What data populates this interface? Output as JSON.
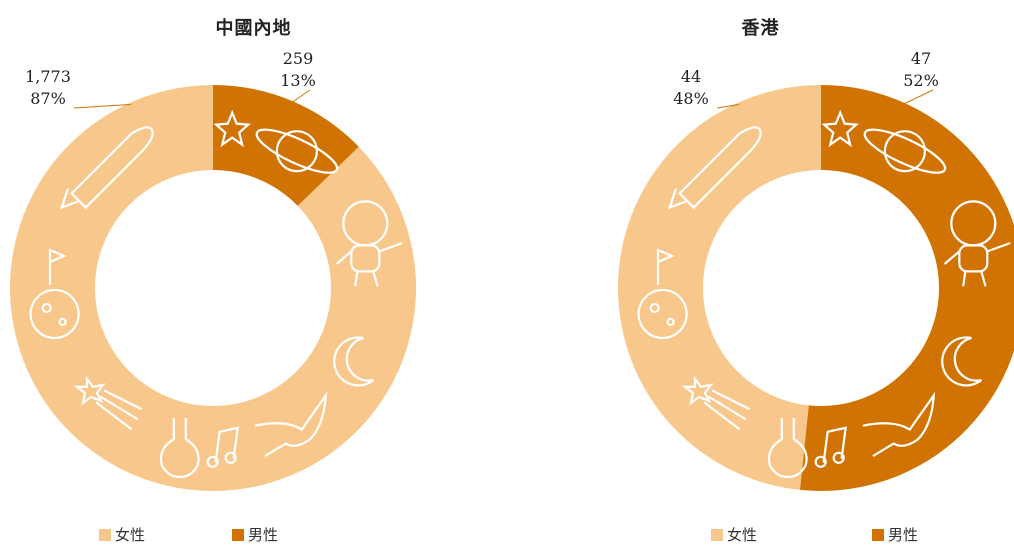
{
  "colors": {
    "female": "#f8c78b",
    "male": "#d07302",
    "decor": "#ffffff"
  },
  "chart_data": [
    {
      "type": "pie",
      "title": "中國內地",
      "categories": [
        "女性",
        "男性"
      ],
      "values": [
        1773,
        259
      ],
      "value_labels": [
        "1,773",
        "259"
      ],
      "percent_labels": [
        "87%",
        "13%"
      ],
      "percentages": [
        87,
        13
      ],
      "legend": {
        "placement": "bottom",
        "entries": [
          "女性",
          "男性"
        ]
      }
    },
    {
      "type": "pie",
      "title": "香港",
      "categories": [
        "女性",
        "男性"
      ],
      "values": [
        44,
        47
      ],
      "value_labels": [
        "44",
        "47"
      ],
      "percent_labels": [
        "48%",
        "52%"
      ],
      "percentages": [
        48,
        52
      ],
      "legend": {
        "placement": "bottom",
        "entries": [
          "女性",
          "男性"
        ]
      }
    }
  ]
}
